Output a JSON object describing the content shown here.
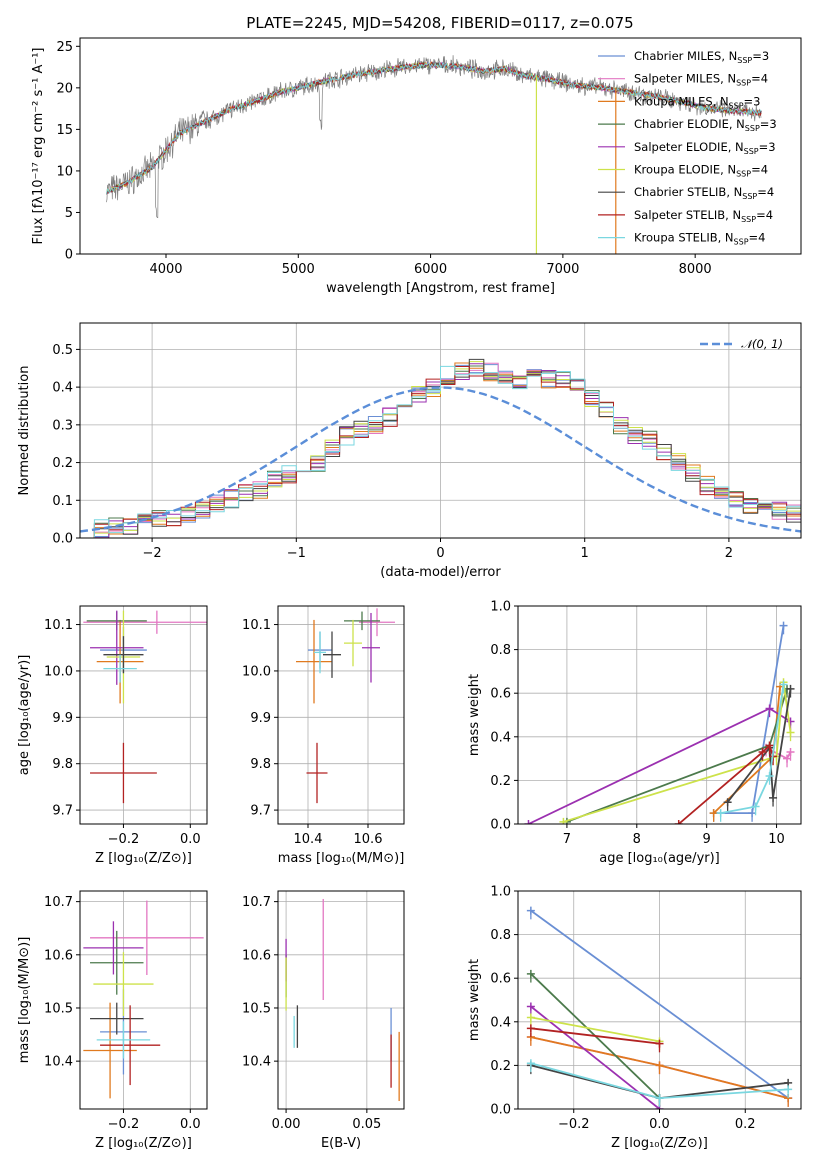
{
  "title": "PLATE=2245, MJD=54208, FIBERID=0117, z=0.075",
  "chart_data": [
    {
      "type": "line",
      "id": "spectrum",
      "xlabel": "wavelength [Angstrom, rest frame]",
      "ylabel": "Flux [fλ10⁻¹⁷ erg cm⁻² s⁻¹ A⁻¹]",
      "xlim": [
        3350,
        8800
      ],
      "ylim": [
        0,
        26
      ],
      "xticks": [
        4000,
        5000,
        6000,
        7000,
        8000
      ],
      "yticks": [
        0,
        5,
        10,
        15,
        20,
        25
      ],
      "grid": false,
      "legend_position": "right",
      "continuum": {
        "x": [
          3550,
          3700,
          3900,
          4000,
          4100,
          4300,
          4500,
          4700,
          4860,
          5000,
          5200,
          5400,
          5600,
          5800,
          6000,
          6200,
          6400,
          6563,
          6700,
          6900,
          7100,
          7300,
          7500,
          7700,
          7900,
          8100,
          8300,
          8500
        ],
        "y": [
          7.5,
          8.5,
          10.5,
          12.5,
          14.5,
          16,
          17.5,
          18.5,
          19.5,
          20,
          20.8,
          21.5,
          22,
          22.5,
          22.8,
          22.6,
          22,
          22.3,
          21.5,
          21,
          20.3,
          20,
          19.5,
          19,
          18.3,
          17.5,
          17.2,
          17
        ]
      },
      "legend": [
        {
          "name": "Chabrier MILES, N",
          "sub": "SSP",
          "suffix": "=3",
          "color": "#6a8fd4"
        },
        {
          "name": "Salpeter MILES, N",
          "sub": "SSP",
          "suffix": "=4",
          "color": "#e377c2"
        },
        {
          "name": "Kroupa MILES, N",
          "sub": "SSP",
          "suffix": "=3",
          "color": "#e07a1f"
        },
        {
          "name": "Chabrier ELODIE, N",
          "sub": "SSP",
          "suffix": "=3",
          "color": "#4c7a4c"
        },
        {
          "name": "Salpeter ELODIE, N",
          "sub": "SSP",
          "suffix": "=3",
          "color": "#9b30b0"
        },
        {
          "name": "Kroupa ELODIE, N",
          "sub": "SSP",
          "suffix": "=4",
          "color": "#cde24a"
        },
        {
          "name": "Chabrier STELIB, N",
          "sub": "SSP",
          "suffix": "=4",
          "color": "#444444"
        },
        {
          "name": "Salpeter STELIB, N",
          "sub": "SSP",
          "suffix": "=4",
          "color": "#b22222"
        },
        {
          "name": "Kroupa STELIB, N",
          "sub": "SSP",
          "suffix": "=4",
          "color": "#7ad7e0"
        }
      ]
    },
    {
      "type": "histogram",
      "id": "residuals",
      "xlabel": "(data-model)/error",
      "ylabel": "Normed distribution",
      "xlim": [
        -2.5,
        2.5
      ],
      "ylim": [
        0,
        0.57
      ],
      "xticks": [
        -2,
        -1,
        0,
        1,
        2
      ],
      "yticks": [
        0.0,
        0.1,
        0.2,
        0.3,
        0.4,
        0.5
      ],
      "grid": true,
      "legend_position": "top-right",
      "reference_curve": {
        "name": "𝒩(0, 1)",
        "mean": 0,
        "sigma": 1,
        "color": "#5b8ed8"
      },
      "bin_edges_start": -2.5,
      "bin_width": 0.1,
      "base_counts": [
        0.02,
        0.025,
        0.03,
        0.035,
        0.04,
        0.05,
        0.055,
        0.065,
        0.075,
        0.09,
        0.105,
        0.12,
        0.13,
        0.16,
        0.17,
        0.18,
        0.2,
        0.24,
        0.27,
        0.29,
        0.3,
        0.32,
        0.36,
        0.38,
        0.4,
        0.43,
        0.44,
        0.45,
        0.44,
        0.43,
        0.42,
        0.44,
        0.42,
        0.42,
        0.4,
        0.37,
        0.34,
        0.3,
        0.27,
        0.26,
        0.23,
        0.2,
        0.17,
        0.14,
        0.12,
        0.1,
        0.09,
        0.08,
        0.07,
        0.065,
        0.06
      ],
      "series_colors": [
        "#6a8fd4",
        "#e377c2",
        "#e07a1f",
        "#4c7a4c",
        "#9b30b0",
        "#cde24a",
        "#444444",
        "#b22222",
        "#7ad7e0"
      ]
    },
    {
      "type": "scatter",
      "id": "age-vs-Z",
      "xlabel": "Z [log₁₀(Z/Z⊙)]",
      "ylabel": "age  [log₁₀(age/yr)]",
      "xlim": [
        -0.33,
        0.05
      ],
      "ylim": [
        9.67,
        10.14
      ],
      "xticks": [
        -0.2,
        0.0
      ],
      "yticks": [
        9.7,
        9.8,
        9.9,
        10.0,
        10.1
      ],
      "grid": true,
      "points": [
        {
          "x": -0.2,
          "y": 10.045,
          "xerr": 0.07,
          "yerr": 0.05,
          "color": "#6a8fd4"
        },
        {
          "x": -0.1,
          "y": 10.105,
          "xerr": 0.22,
          "yerr": 0.025,
          "color": "#e377c2"
        },
        {
          "x": -0.21,
          "y": 10.02,
          "xerr": 0.07,
          "yerr": 0.09,
          "color": "#e07a1f"
        },
        {
          "x": -0.22,
          "y": 10.108,
          "xerr": 0.09,
          "yerr": 0.02,
          "color": "#4c7a4c"
        },
        {
          "x": -0.22,
          "y": 10.05,
          "xerr": 0.08,
          "yerr": 0.08,
          "color": "#9b30b0"
        },
        {
          "x": -0.2,
          "y": 10.03,
          "xerr": 0.05,
          "yerr": 0.1,
          "color": "#cde24a"
        },
        {
          "x": -0.2,
          "y": 10.035,
          "xerr": 0.06,
          "yerr": 0.04,
          "color": "#444444"
        },
        {
          "x": -0.2,
          "y": 9.78,
          "xerr": 0.1,
          "yerr": 0.065,
          "color": "#b22222"
        },
        {
          "x": -0.21,
          "y": 10.005,
          "xerr": 0.05,
          "yerr": 0.03,
          "color": "#7ad7e0"
        }
      ]
    },
    {
      "type": "scatter",
      "id": "age-vs-mass",
      "xlabel": "mass [log₁₀(M/M⊙)]",
      "ylabel": "",
      "xlim": [
        10.3,
        10.72
      ],
      "ylim": [
        9.67,
        10.14
      ],
      "xticks": [
        10.4,
        10.6
      ],
      "yticks": [
        9.7,
        9.8,
        9.9,
        10.0,
        10.1
      ],
      "grid": true,
      "points": [
        {
          "x": 10.44,
          "y": 10.045,
          "xerr": 0.04,
          "yerr": 0.04,
          "color": "#6a8fd4"
        },
        {
          "x": 10.63,
          "y": 10.105,
          "xerr": 0.06,
          "yerr": 0.03,
          "color": "#e377c2"
        },
        {
          "x": 10.42,
          "y": 10.02,
          "xerr": 0.06,
          "yerr": 0.09,
          "color": "#e07a1f"
        },
        {
          "x": 10.58,
          "y": 10.108,
          "xerr": 0.06,
          "yerr": 0.02,
          "color": "#4c7a4c"
        },
        {
          "x": 10.61,
          "y": 10.05,
          "xerr": 0.03,
          "yerr": 0.075,
          "color": "#9b30b0"
        },
        {
          "x": 10.55,
          "y": 10.06,
          "xerr": 0.03,
          "yerr": 0.05,
          "color": "#cde24a"
        },
        {
          "x": 10.48,
          "y": 10.035,
          "xerr": 0.03,
          "yerr": 0.05,
          "color": "#444444"
        },
        {
          "x": 10.43,
          "y": 9.78,
          "xerr": 0.035,
          "yerr": 0.065,
          "color": "#b22222"
        },
        {
          "x": 10.44,
          "y": 10.04,
          "xerr": 0.02,
          "yerr": 0.045,
          "color": "#7ad7e0"
        }
      ]
    },
    {
      "type": "line",
      "id": "massweight-vs-age",
      "xlabel": "age  [log₁₀(age/yr)]",
      "ylabel": "mass weight",
      "xlim": [
        6.3,
        10.35
      ],
      "ylim": [
        0,
        1
      ],
      "xticks": [
        7,
        8,
        9,
        10
      ],
      "yticks": [
        0.0,
        0.2,
        0.4,
        0.6,
        0.8,
        1.0
      ],
      "grid": true,
      "series": [
        {
          "color": "#6a8fd4",
          "x": [
            9.1,
            9.65,
            10.1
          ],
          "y": [
            0.05,
            0.05,
            0.91
          ]
        },
        {
          "color": "#e377c2",
          "x": [
            9.85,
            10.15,
            10.2
          ],
          "y": [
            0.35,
            0.3,
            0.33
          ]
        },
        {
          "color": "#e07a1f",
          "x": [
            9.1,
            9.95,
            10.05
          ],
          "y": [
            0.05,
            0.31,
            0.63
          ]
        },
        {
          "color": "#4c7a4c",
          "x": [
            7.0,
            9.9,
            10.15
          ],
          "y": [
            0.01,
            0.36,
            0.62
          ]
        },
        {
          "color": "#9b30b0",
          "x": [
            6.45,
            9.9,
            10.2
          ],
          "y": [
            0.0,
            0.53,
            0.47
          ]
        },
        {
          "color": "#cde24a",
          "x": [
            6.95,
            10.0,
            10.1,
            10.2
          ],
          "y": [
            0.01,
            0.31,
            0.65,
            0.42
          ]
        },
        {
          "color": "#444444",
          "x": [
            9.3,
            9.9,
            9.95,
            10.2
          ],
          "y": [
            0.1,
            0.35,
            0.12,
            0.62
          ]
        },
        {
          "color": "#b22222",
          "x": [
            8.6,
            9.8,
            9.9,
            9.95
          ],
          "y": [
            0.0,
            0.33,
            0.36,
            0.31
          ]
        },
        {
          "color": "#7ad7e0",
          "x": [
            9.2,
            9.7,
            9.9,
            10.1
          ],
          "y": [
            0.05,
            0.08,
            0.22,
            0.64
          ]
        }
      ]
    },
    {
      "type": "scatter",
      "id": "mass-vs-Z",
      "xlabel": "Z [log₁₀(Z/Z⊙)]",
      "ylabel": "mass [log₁₀(M/M⊙)]",
      "xlim": [
        -0.33,
        0.05
      ],
      "ylim": [
        10.31,
        10.72
      ],
      "xticks": [
        -0.2,
        0.0
      ],
      "yticks": [
        10.4,
        10.5,
        10.6,
        10.7
      ],
      "grid": true,
      "points": [
        {
          "x": -0.2,
          "y": 10.455,
          "xerr": 0.07,
          "yerr": 0.08,
          "color": "#6a8fd4"
        },
        {
          "x": -0.13,
          "y": 10.632,
          "xerr": 0.17,
          "yerr": 0.07,
          "color": "#e377c2"
        },
        {
          "x": -0.24,
          "y": 10.42,
          "xerr": 0.08,
          "yerr": 0.09,
          "color": "#e07a1f"
        },
        {
          "x": -0.22,
          "y": 10.585,
          "xerr": 0.08,
          "yerr": 0.06,
          "color": "#4c7a4c"
        },
        {
          "x": -0.23,
          "y": 10.613,
          "xerr": 0.09,
          "yerr": 0.05,
          "color": "#9b30b0"
        },
        {
          "x": -0.2,
          "y": 10.545,
          "xerr": 0.09,
          "yerr": 0.06,
          "color": "#cde24a"
        },
        {
          "x": -0.22,
          "y": 10.48,
          "xerr": 0.08,
          "yerr": 0.03,
          "color": "#444444"
        },
        {
          "x": -0.18,
          "y": 10.43,
          "xerr": 0.09,
          "yerr": 0.075,
          "color": "#b22222"
        },
        {
          "x": -0.2,
          "y": 10.44,
          "xerr": 0.08,
          "yerr": 0.035,
          "color": "#7ad7e0"
        }
      ]
    },
    {
      "type": "scatter",
      "id": "mass-vs-EBV",
      "xlabel": "E(B-V)",
      "ylabel": "",
      "xlim": [
        -0.005,
        0.073
      ],
      "ylim": [
        10.31,
        10.72
      ],
      "xticks": [
        0.0,
        0.05
      ],
      "yticks": [
        10.4,
        10.5,
        10.6,
        10.7
      ],
      "grid": true,
      "points": [
        {
          "x": 0.065,
          "y": 10.45,
          "yerr": 0.05,
          "color": "#6a8fd4"
        },
        {
          "x": 0.023,
          "y": 10.61,
          "yerr": 0.095,
          "color": "#e377c2"
        },
        {
          "x": 0.07,
          "y": 10.39,
          "yerr": 0.065,
          "color": "#e07a1f"
        },
        {
          "x": 0.0,
          "y": 10.56,
          "yerr": 0.04,
          "color": "#4c7a4c"
        },
        {
          "x": 0.0,
          "y": 10.59,
          "yerr": 0.04,
          "color": "#9b30b0"
        },
        {
          "x": 0.0,
          "y": 10.545,
          "yerr": 0.05,
          "color": "#cde24a"
        },
        {
          "x": 0.007,
          "y": 10.465,
          "yerr": 0.04,
          "color": "#444444"
        },
        {
          "x": 0.065,
          "y": 10.4,
          "yerr": 0.05,
          "color": "#b22222"
        },
        {
          "x": 0.005,
          "y": 10.455,
          "yerr": 0.03,
          "color": "#7ad7e0"
        }
      ]
    },
    {
      "type": "line",
      "id": "massweight-vs-Z",
      "xlabel": "Z [log₁₀(Z/Z⊙)]",
      "ylabel": "mass weight",
      "xlim": [
        -0.33,
        0.33
      ],
      "ylim": [
        0,
        1
      ],
      "xticks": [
        -0.2,
        0.0,
        0.2
      ],
      "yticks": [
        0.0,
        0.2,
        0.4,
        0.6,
        0.8,
        1.0
      ],
      "grid": true,
      "series": [
        {
          "color": "#6a8fd4",
          "x": [
            -0.3,
            0.3
          ],
          "y": [
            0.91,
            0.05
          ]
        },
        {
          "color": "#e377c2",
          "x": [
            -0.3,
            0.0,
            0.3
          ],
          "y": [
            0.33,
            0.2,
            0.05
          ]
        },
        {
          "color": "#e07a1f",
          "x": [
            -0.3,
            0.0,
            0.3
          ],
          "y": [
            0.33,
            0.2,
            0.05
          ]
        },
        {
          "color": "#4c7a4c",
          "x": [
            -0.3,
            0.0
          ],
          "y": [
            0.62,
            0.05
          ]
        },
        {
          "color": "#9b30b0",
          "x": [
            -0.3,
            0.0
          ],
          "y": [
            0.47,
            0.0
          ]
        },
        {
          "color": "#cde24a",
          "x": [
            -0.3,
            0.0
          ],
          "y": [
            0.42,
            0.31
          ]
        },
        {
          "color": "#444444",
          "x": [
            -0.3,
            0.0,
            0.3
          ],
          "y": [
            0.2,
            0.05,
            0.12
          ]
        },
        {
          "color": "#b22222",
          "x": [
            -0.3,
            0.0
          ],
          "y": [
            0.37,
            0.3
          ]
        },
        {
          "color": "#7ad7e0",
          "x": [
            -0.3,
            0.0,
            0.3
          ],
          "y": [
            0.21,
            0.05,
            0.09
          ]
        }
      ]
    }
  ]
}
